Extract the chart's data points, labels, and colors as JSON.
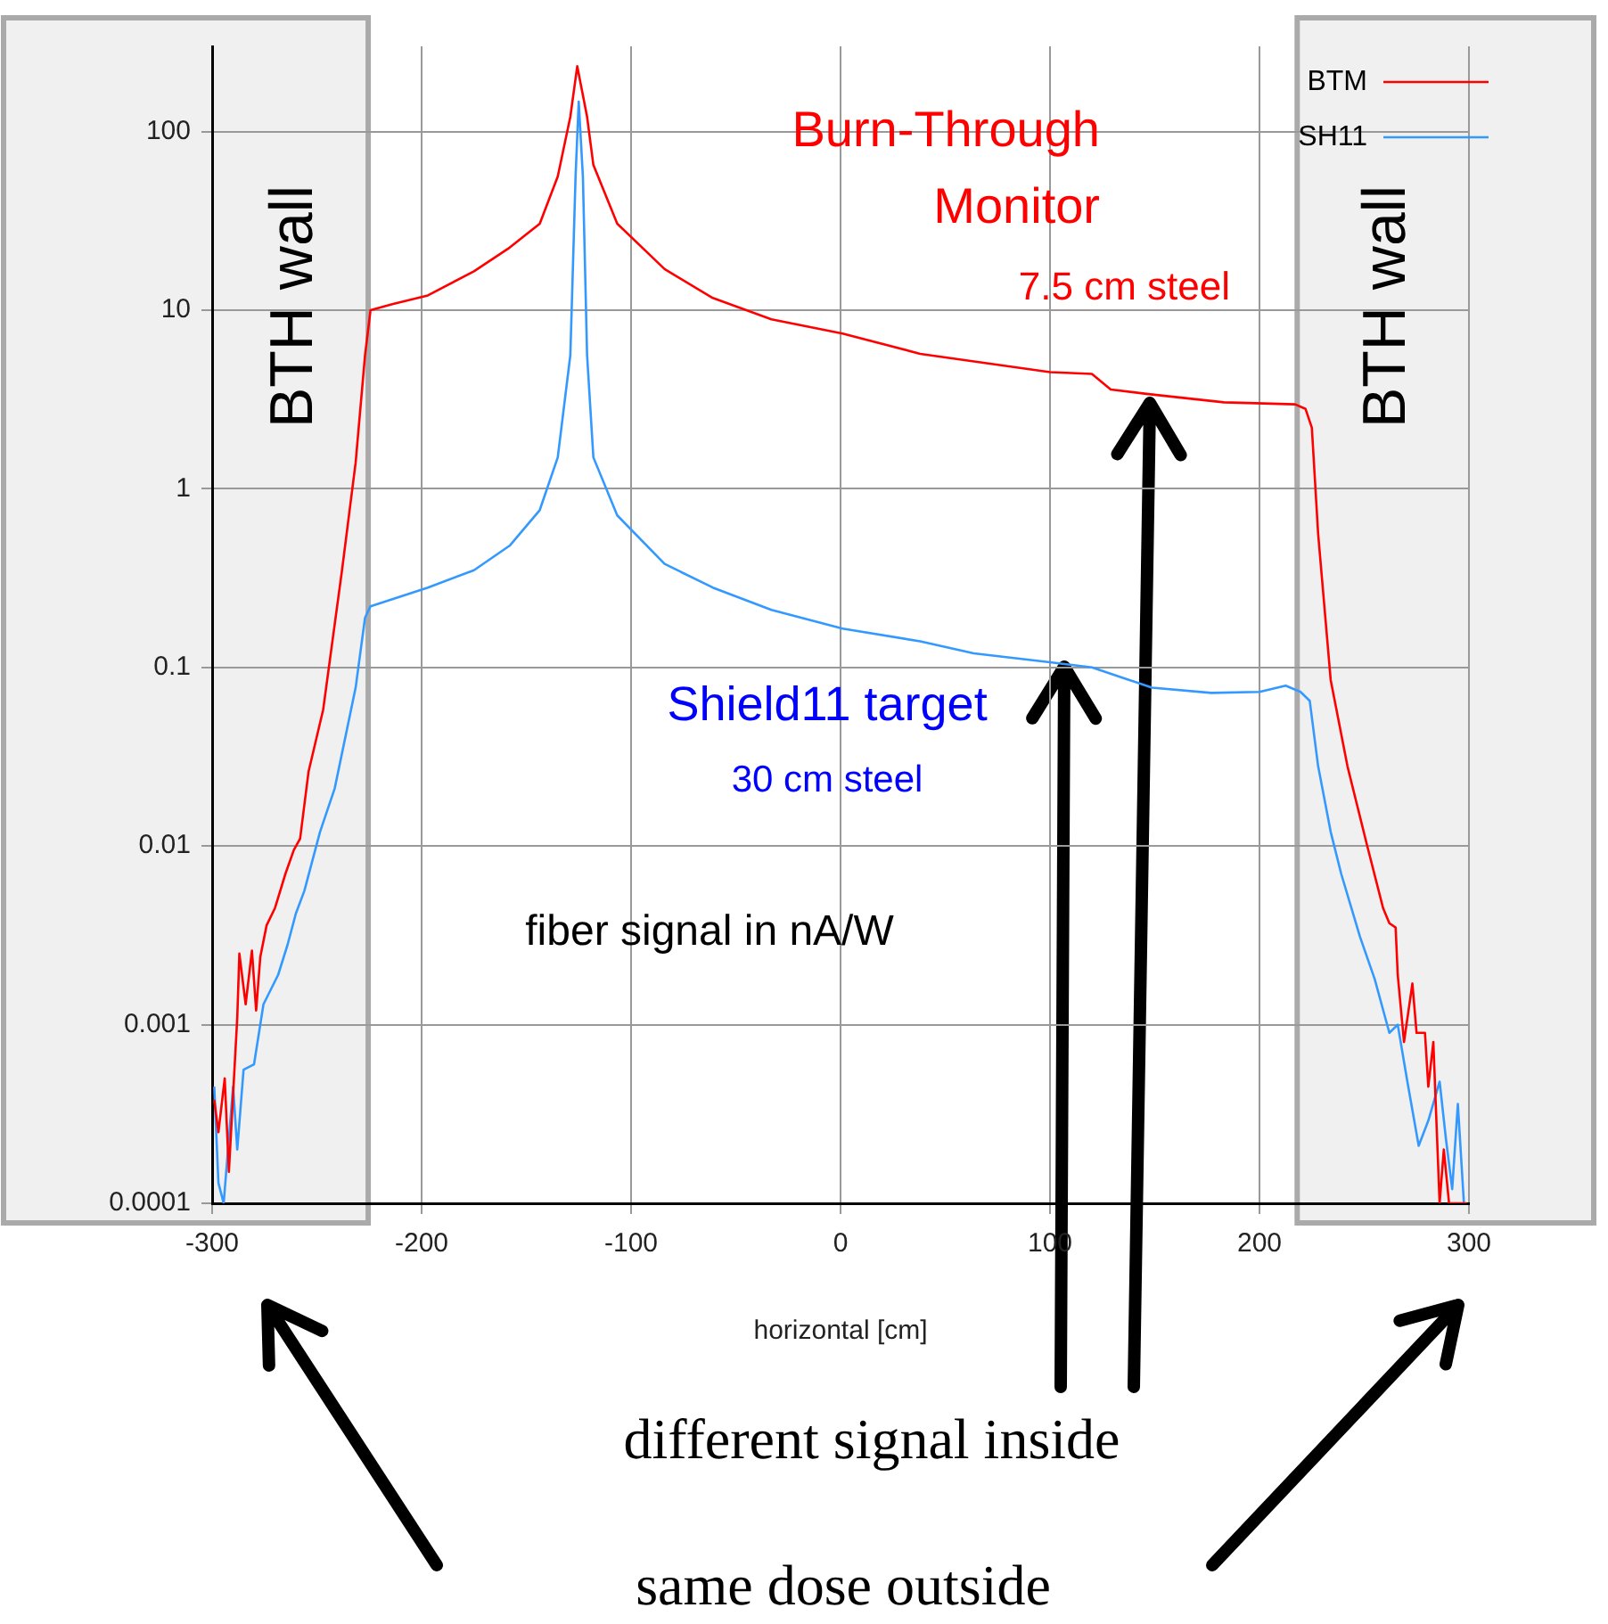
{
  "chart_data": {
    "type": "line",
    "xlabel": "horizontal [cm]",
    "xlim": [
      -300,
      300
    ],
    "xticks": [
      -300,
      -200,
      -100,
      0,
      100,
      200,
      300
    ],
    "ylim": [
      0.0001,
      300
    ],
    "yticks": [
      0.0001,
      0.001,
      0.01,
      0.1,
      1,
      10,
      100
    ],
    "log": "y",
    "grid": true,
    "legend": "top right",
    "marker": "none",
    "line_style": "solid",
    "series": [
      {
        "name": "BTM",
        "color": "#ff0000",
        "x": [
          -299,
          -297,
          -294,
          -292,
          -288,
          -287,
          -284,
          -281,
          -279,
          -277,
          -274,
          -270,
          -265,
          -261,
          -258,
          -254,
          -247,
          -238,
          -231.5,
          -227,
          -224.4,
          -214,
          -197,
          -175,
          -158,
          -143.6,
          -135,
          -129,
          -125.7,
          -121,
          -118,
          -106.6,
          -84,
          -61,
          -33,
          1,
          38,
          100,
          120,
          129,
          146,
          183,
          217,
          222,
          225,
          228,
          234,
          242,
          251,
          259,
          262,
          265,
          266,
          269,
          273,
          275,
          279,
          280.6,
          283,
          286,
          288,
          290.5,
          294.7,
          299
        ],
        "values": [
          0.00038,
          0.00025,
          0.0005,
          0.00015,
          0.0011,
          0.0025,
          0.0013,
          0.0026,
          0.0012,
          0.0024,
          0.0036,
          0.0045,
          0.007,
          0.0095,
          0.011,
          0.026,
          0.058,
          0.35,
          1.4,
          5.6,
          10,
          10.8,
          12.1,
          16.5,
          22.4,
          30.5,
          56,
          121,
          232,
          121,
          65,
          30.5,
          17,
          11.7,
          8.9,
          7.4,
          5.7,
          4.5,
          4.4,
          3.6,
          3.4,
          3.05,
          2.97,
          2.8,
          2.2,
          0.56,
          0.085,
          0.028,
          0.0105,
          0.0045,
          0.0037,
          0.0035,
          0.0019,
          0.0008,
          0.0017,
          0.0009,
          0.0009,
          0.00045,
          0.0008,
          0.0001,
          0.0002,
          0.0001,
          0.0001,
          0.0001
        ]
      },
      {
        "name": "SH11",
        "color": "#3399ff",
        "x": [
          -299,
          -297,
          -294.5,
          -290,
          -288,
          -285,
          -280,
          -275.5,
          -268.5,
          -264,
          -260,
          -256,
          -248.5,
          -241.5,
          -231.5,
          -227,
          -224.4,
          -197,
          -175,
          -158,
          -143.6,
          -135,
          -129,
          -126.5,
          -125,
          -123,
          -121,
          -118,
          -106.6,
          -84,
          -61,
          -33,
          1,
          38,
          63.6,
          100,
          120,
          148.7,
          177,
          200,
          212.5,
          219.6,
          224,
          228,
          234,
          239,
          248,
          255,
          262,
          266,
          270.6,
          276,
          280.6,
          286,
          289,
          292,
          294.7,
          297.6
        ],
        "values": [
          0.00045,
          0.00013,
          0.0001,
          0.00045,
          0.0002,
          0.00056,
          0.0006,
          0.0013,
          0.0019,
          0.0028,
          0.0042,
          0.0056,
          0.012,
          0.021,
          0.077,
          0.19,
          0.22,
          0.28,
          0.35,
          0.48,
          0.76,
          1.5,
          5.6,
          56,
          147,
          56,
          5.6,
          1.5,
          0.71,
          0.38,
          0.28,
          0.21,
          0.165,
          0.14,
          0.12,
          0.107,
          0.1,
          0.077,
          0.072,
          0.073,
          0.079,
          0.073,
          0.065,
          0.028,
          0.012,
          0.007,
          0.0031,
          0.0018,
          0.0009,
          0.001,
          0.00048,
          0.00021,
          0.00029,
          0.00048,
          0.00023,
          0.00012,
          0.00036,
          0.0001
        ]
      }
    ],
    "bands": [
      {
        "axis": "x",
        "from": -300,
        "to": -225.5,
        "label": "BTH wall",
        "color": "#f0f0f0"
      },
      {
        "axis": "x",
        "from": 218,
        "to": 300,
        "label": "BTH wall",
        "color": "#f0f0f0"
      }
    ],
    "annotations": [
      "Burn-Through\nMonitor",
      "7.5 cm steel",
      "Shield11 target",
      "30 cm steel",
      "fiber signal in nA/W",
      "different signal inside",
      "same dose outside"
    ]
  }
}
